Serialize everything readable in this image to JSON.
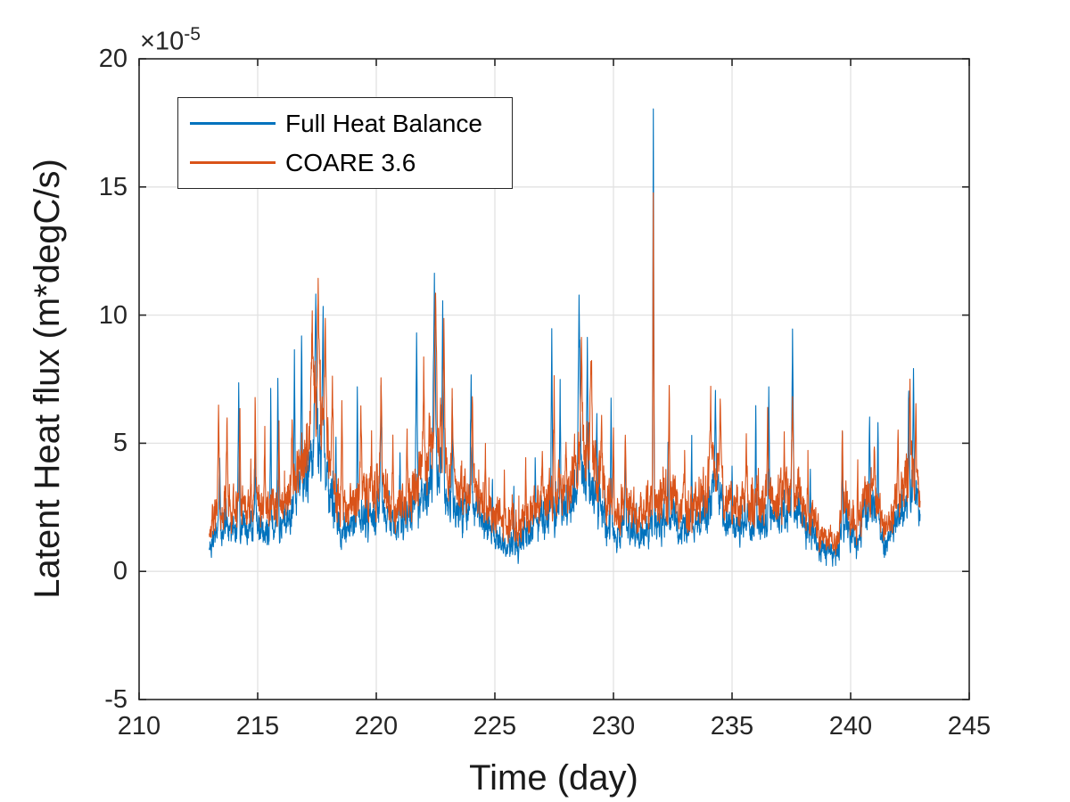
{
  "figure": {
    "background": "#ffffff",
    "axes": {
      "xlabel": "Time (day)",
      "ylabel": "Latent Heat flux (m*degC/s)",
      "exponent_label": {
        "base": "×10",
        "exp": "-5"
      },
      "xlim": [
        210,
        245
      ],
      "ylim_scaled": [
        -5,
        20
      ],
      "y_scale": "1e-5",
      "xticks": [
        210,
        215,
        220,
        225,
        230,
        235,
        240,
        245
      ],
      "yticks": [
        -5,
        0,
        5,
        10,
        15,
        20
      ],
      "grid": true,
      "box": true,
      "tick_direction": "in",
      "axis_color": "#262626",
      "grid_color": "#e2e2e2"
    },
    "legend": {
      "position": "upper-left",
      "items": [
        {
          "label": "Full Heat Balance",
          "color": "#0072BD"
        },
        {
          "label": "COARE 3.6",
          "color": "#D95319"
        }
      ]
    },
    "chart_data": {
      "type": "line",
      "title": "",
      "x_start": 212.96,
      "x_end": 242.93,
      "x_step": 0.01,
      "x_units": "day",
      "y_units": "m*degC/s (values in 1e-5)",
      "envelope_x": [
        213.0,
        213.5,
        214.0,
        214.5,
        215.0,
        215.5,
        216.0,
        216.5,
        217.0,
        217.4,
        217.7,
        218.0,
        218.4,
        218.8,
        219.2,
        219.6,
        220.0,
        220.4,
        220.8,
        221.2,
        221.6,
        222.0,
        222.4,
        222.7,
        223.0,
        223.4,
        223.8,
        224.2,
        224.6,
        225.0,
        225.5,
        226.0,
        226.5,
        227.0,
        227.4,
        227.8,
        228.2,
        228.6,
        229.0,
        229.4,
        229.8,
        230.2,
        230.6,
        231.0,
        231.4,
        231.8,
        232.2,
        232.6,
        233.0,
        233.4,
        233.8,
        234.2,
        234.6,
        235.0,
        235.4,
        235.8,
        236.2,
        236.6,
        237.0,
        237.4,
        237.8,
        238.2,
        238.6,
        239.0,
        239.4,
        239.8,
        240.2,
        240.6,
        241.0,
        241.4,
        241.8,
        242.2,
        242.6,
        242.92
      ],
      "series": [
        {
          "name": "Full Heat Balance",
          "color": "#0072BD",
          "envelope_y": [
            1.3,
            1.8,
            1.6,
            1.9,
            1.7,
            1.6,
            1.8,
            2.6,
            3.6,
            4.6,
            4.2,
            3.2,
            1.9,
            1.4,
            2.0,
            2.2,
            2.4,
            2.2,
            1.7,
            1.9,
            2.5,
            3.0,
            4.2,
            3.8,
            2.8,
            2.2,
            2.6,
            2.4,
            1.6,
            1.3,
            1.1,
            1.2,
            1.5,
            1.9,
            2.6,
            2.2,
            2.6,
            3.8,
            3.4,
            2.6,
            1.8,
            1.6,
            1.8,
            1.4,
            1.6,
            1.7,
            2.0,
            1.9,
            1.6,
            1.5,
            2.2,
            2.8,
            2.4,
            1.7,
            1.9,
            1.7,
            2.0,
            2.1,
            2.0,
            2.6,
            2.2,
            1.6,
            1.2,
            0.7,
            0.8,
            1.9,
            1.0,
            2.0,
            2.4,
            1.1,
            1.8,
            2.4,
            3.2,
            2.0
          ],
          "peaks": [
            [
              213.4,
              4.6,
              0.05
            ],
            [
              214.2,
              7.4,
              0.06
            ],
            [
              214.9,
              5.0,
              0.05
            ],
            [
              215.55,
              7.2,
              0.05
            ],
            [
              215.85,
              7.4,
              0.06
            ],
            [
              216.55,
              8.6,
              0.05
            ],
            [
              216.85,
              9.3,
              0.06
            ],
            [
              217.45,
              11.0,
              0.1
            ],
            [
              217.75,
              9.6,
              0.08
            ],
            [
              218.3,
              5.6,
              0.05
            ],
            [
              219.2,
              7.2,
              0.05
            ],
            [
              220.2,
              7.4,
              0.07
            ],
            [
              221.0,
              4.6,
              0.05
            ],
            [
              221.7,
              9.4,
              0.07
            ],
            [
              222.45,
              11.7,
              0.1
            ],
            [
              222.8,
              10.4,
              0.07
            ],
            [
              223.2,
              6.8,
              0.05
            ],
            [
              224.0,
              7.4,
              0.07
            ],
            [
              224.9,
              3.6,
              0.04
            ],
            [
              225.8,
              3.4,
              0.04
            ],
            [
              226.7,
              4.4,
              0.04
            ],
            [
              227.4,
              9.4,
              0.06
            ],
            [
              227.75,
              7.2,
              0.05
            ],
            [
              228.55,
              10.7,
              0.09
            ],
            [
              228.9,
              8.8,
              0.06
            ],
            [
              229.3,
              6.4,
              0.05
            ],
            [
              229.9,
              6.9,
              0.05
            ],
            [
              230.5,
              5.0,
              0.05
            ],
            [
              231.68,
              18.1,
              0.05
            ],
            [
              232.3,
              5.4,
              0.05
            ],
            [
              233.3,
              5.2,
              0.05
            ],
            [
              234.3,
              7.0,
              0.07
            ],
            [
              235.0,
              4.4,
              0.04
            ],
            [
              236.0,
              6.5,
              0.05
            ],
            [
              236.55,
              7.0,
              0.05
            ],
            [
              237.55,
              9.6,
              0.07
            ],
            [
              238.3,
              4.2,
              0.04
            ],
            [
              239.65,
              5.5,
              0.05
            ],
            [
              240.8,
              6.2,
              0.06
            ],
            [
              241.15,
              5.8,
              0.05
            ],
            [
              242.45,
              7.0,
              0.06
            ],
            [
              242.65,
              7.7,
              0.06
            ]
          ]
        },
        {
          "name": "COARE 3.6",
          "color": "#D95319",
          "envelope_y": [
            1.9,
            2.6,
            2.4,
            2.7,
            2.5,
            2.4,
            2.6,
            3.4,
            4.6,
            6.2,
            5.6,
            4.6,
            2.9,
            2.2,
            3.0,
            3.2,
            3.4,
            3.0,
            2.5,
            2.7,
            3.3,
            4.2,
            5.6,
            5.2,
            4.0,
            3.4,
            3.4,
            3.2,
            2.4,
            2.1,
            1.9,
            1.9,
            2.2,
            2.7,
            3.2,
            3.0,
            3.4,
            5.0,
            4.8,
            3.8,
            2.8,
            2.4,
            2.6,
            2.2,
            2.4,
            2.5,
            3.0,
            2.7,
            2.4,
            2.3,
            3.0,
            3.8,
            3.4,
            2.5,
            2.7,
            2.5,
            2.8,
            2.9,
            2.8,
            3.4,
            3.0,
            2.2,
            1.8,
            1.1,
            1.2,
            2.7,
            1.5,
            2.6,
            3.0,
            1.6,
            2.4,
            3.2,
            4.0,
            2.6
          ],
          "peaks": [
            [
              213.35,
              6.0,
              0.06
            ],
            [
              213.7,
              5.6,
              0.05
            ],
            [
              214.25,
              6.4,
              0.06
            ],
            [
              214.9,
              6.3,
              0.06
            ],
            [
              215.3,
              5.5,
              0.05
            ],
            [
              215.9,
              5.8,
              0.05
            ],
            [
              216.45,
              6.2,
              0.06
            ],
            [
              217.3,
              10.2,
              0.09
            ],
            [
              217.55,
              11.1,
              0.1
            ],
            [
              217.85,
              9.9,
              0.08
            ],
            [
              218.15,
              7.6,
              0.06
            ],
            [
              218.55,
              7.0,
              0.06
            ],
            [
              219.35,
              6.4,
              0.06
            ],
            [
              219.8,
              5.2,
              0.05
            ],
            [
              220.2,
              7.4,
              0.08
            ],
            [
              220.7,
              5.0,
              0.05
            ],
            [
              221.3,
              5.6,
              0.05
            ],
            [
              222.0,
              7.6,
              0.07
            ],
            [
              222.5,
              11.0,
              0.1
            ],
            [
              222.85,
              9.7,
              0.07
            ],
            [
              223.2,
              7.5,
              0.06
            ],
            [
              224.05,
              7.1,
              0.07
            ],
            [
              224.6,
              4.6,
              0.04
            ],
            [
              225.4,
              3.8,
              0.04
            ],
            [
              226.3,
              4.2,
              0.04
            ],
            [
              227.0,
              5.0,
              0.05
            ],
            [
              227.5,
              7.0,
              0.06
            ],
            [
              228.0,
              5.4,
              0.05
            ],
            [
              228.65,
              9.0,
              0.08
            ],
            [
              229.05,
              8.6,
              0.07
            ],
            [
              229.5,
              6.6,
              0.05
            ],
            [
              230.0,
              5.4,
              0.05
            ],
            [
              230.5,
              5.3,
              0.05
            ],
            [
              231.68,
              14.8,
              0.05
            ],
            [
              232.35,
              6.3,
              0.06
            ],
            [
              233.0,
              4.6,
              0.04
            ],
            [
              234.1,
              6.9,
              0.07
            ],
            [
              234.5,
              6.4,
              0.06
            ],
            [
              235.6,
              5.4,
              0.05
            ],
            [
              236.5,
              6.4,
              0.06
            ],
            [
              237.2,
              5.2,
              0.05
            ],
            [
              237.55,
              7.2,
              0.07
            ],
            [
              238.2,
              4.6,
              0.04
            ],
            [
              239.65,
              5.7,
              0.06
            ],
            [
              240.3,
              4.4,
              0.04
            ],
            [
              241.0,
              5.2,
              0.05
            ],
            [
              242.0,
              5.5,
              0.05
            ],
            [
              242.5,
              6.8,
              0.07
            ],
            [
              242.75,
              6.2,
              0.05
            ]
          ]
        }
      ],
      "noise": {
        "seed_blue": 101,
        "seed_orange": 202,
        "ar": 0.55,
        "amp_base": 0.26,
        "amp_env": 0.16,
        "peak_damp": 0.3,
        "couple": 0.6,
        "own": 0.75,
        "microspike_p": 0.975,
        "clamp": [
          0.0,
          18.2
        ]
      }
    }
  }
}
